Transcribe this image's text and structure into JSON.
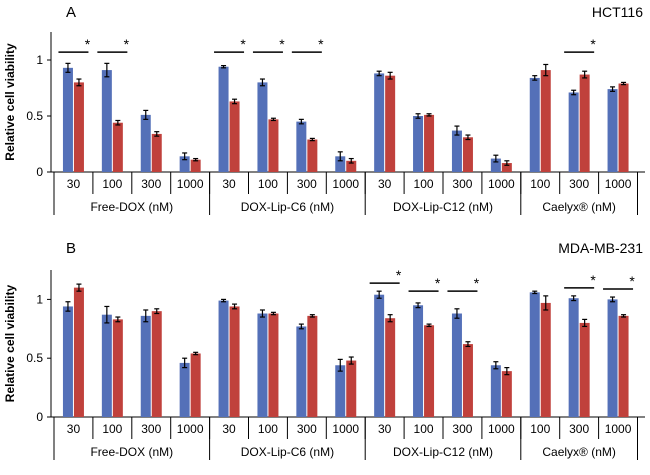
{
  "colors": {
    "series1": "#5470b8",
    "series2": "#c0413c",
    "axis": "#000000",
    "errorbar": "#000000"
  },
  "chart_data": [
    {
      "type": "bar",
      "panel_label": "A",
      "title": "HCT116",
      "ylabel": "Relative cell viability",
      "ylim": [
        0,
        1.25
      ],
      "yticks": [
        0,
        0.5,
        1
      ],
      "ytick_labels": [
        "0",
        "0.5",
        "1"
      ],
      "groups": [
        {
          "label": "Free-DOX (nM)",
          "doses": [
            "30",
            "100",
            "300",
            "1000"
          ]
        },
        {
          "label": "DOX-Lip-C6 (nM)",
          "doses": [
            "30",
            "100",
            "300",
            "1000"
          ]
        },
        {
          "label": "DOX-Lip-C12 (nM)",
          "doses": [
            "30",
            "100",
            "300",
            "1000"
          ]
        },
        {
          "label": "Caelyx® (nM)",
          "doses": [
            "100",
            "300",
            "1000"
          ]
        }
      ],
      "series": [
        {
          "name": "series 1 (blue)",
          "values": [
            0.93,
            0.91,
            0.51,
            0.14,
            0.94,
            0.8,
            0.45,
            0.14,
            0.88,
            0.5,
            0.37,
            0.12,
            0.84,
            0.71,
            0.74
          ],
          "errors": [
            0.04,
            0.06,
            0.04,
            0.03,
            0.01,
            0.03,
            0.02,
            0.04,
            0.02,
            0.02,
            0.04,
            0.03,
            0.02,
            0.02,
            0.02
          ]
        },
        {
          "name": "series 2 (red)",
          "values": [
            0.8,
            0.44,
            0.34,
            0.11,
            0.63,
            0.47,
            0.29,
            0.1,
            0.86,
            0.51,
            0.31,
            0.08,
            0.91,
            0.87,
            0.79
          ],
          "errors": [
            0.03,
            0.02,
            0.02,
            0.01,
            0.02,
            0.01,
            0.01,
            0.02,
            0.03,
            0.01,
            0.02,
            0.02,
            0.05,
            0.03,
            0.01
          ]
        }
      ],
      "significance": [
        {
          "index": 0,
          "label": "*"
        },
        {
          "index": 1,
          "label": "*"
        },
        {
          "index": 4,
          "label": "*"
        },
        {
          "index": 5,
          "label": "*"
        },
        {
          "index": 6,
          "label": "*"
        },
        {
          "index": 13,
          "label": "*"
        }
      ]
    },
    {
      "type": "bar",
      "panel_label": "B",
      "title": "MDA-MB-231",
      "ylabel": "Relative cell viability",
      "ylim": [
        0,
        1.25
      ],
      "yticks": [
        0,
        0.5,
        1
      ],
      "ytick_labels": [
        "0",
        "0.5",
        "1"
      ],
      "groups": [
        {
          "label": "Free-DOX (nM)",
          "doses": [
            "30",
            "100",
            "300",
            "1000"
          ]
        },
        {
          "label": "DOX-Lip-C6 (nM)",
          "doses": [
            "30",
            "100",
            "300",
            "1000"
          ]
        },
        {
          "label": "DOX-Lip-C12 (nM)",
          "doses": [
            "30",
            "100",
            "300",
            "1000"
          ]
        },
        {
          "label": "Caelyx® (nM)",
          "doses": [
            "100",
            "300",
            "1000"
          ]
        }
      ],
      "series": [
        {
          "name": "series 1 (blue)",
          "values": [
            0.94,
            0.87,
            0.86,
            0.46,
            0.99,
            0.88,
            0.77,
            0.44,
            1.04,
            0.95,
            0.88,
            0.44,
            1.06,
            1.01,
            1.0
          ],
          "errors": [
            0.04,
            0.07,
            0.05,
            0.04,
            0.01,
            0.03,
            0.02,
            0.05,
            0.03,
            0.02,
            0.04,
            0.03,
            0.01,
            0.02,
            0.02
          ]
        },
        {
          "name": "series 2 (red)",
          "values": [
            1.1,
            0.83,
            0.9,
            0.54,
            0.94,
            0.88,
            0.86,
            0.48,
            0.84,
            0.78,
            0.62,
            0.39,
            0.97,
            0.8,
            0.86
          ],
          "errors": [
            0.03,
            0.02,
            0.02,
            0.01,
            0.02,
            0.01,
            0.01,
            0.03,
            0.03,
            0.01,
            0.02,
            0.03,
            0.06,
            0.03,
            0.01
          ]
        }
      ],
      "significance": [
        {
          "index": 8,
          "label": "*"
        },
        {
          "index": 9,
          "label": "*"
        },
        {
          "index": 10,
          "label": "*"
        },
        {
          "index": 13,
          "label": "*"
        },
        {
          "index": 14,
          "label": "*"
        }
      ]
    }
  ]
}
